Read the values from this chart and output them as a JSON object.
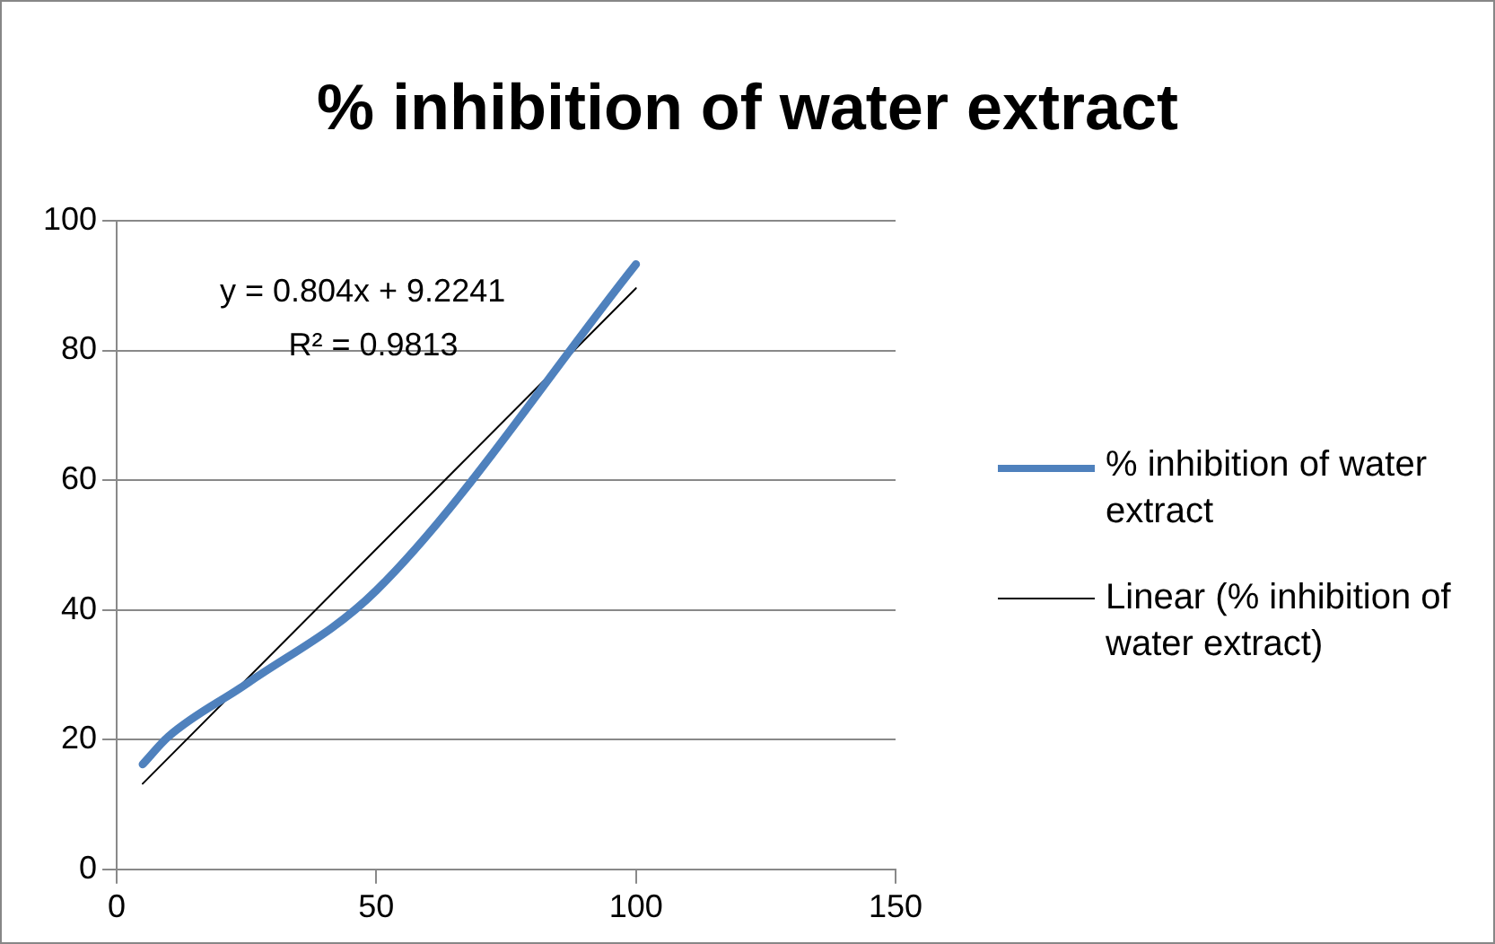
{
  "chart_data": {
    "type": "line",
    "title": "% inhibition of water extract",
    "series": [
      {
        "name": "% inhibition of water extract",
        "color": "#4f81bd",
        "x": [
          5,
          10,
          25,
          50,
          100
        ],
        "values": [
          16.2,
          20.5,
          28.6,
          43,
          93.3
        ]
      },
      {
        "type": "line",
        "name": "Linear (% inhibition of water extract)",
        "color": "#000000",
        "x": [
          5,
          100
        ],
        "values": [
          13.2,
          89.6
        ]
      }
    ],
    "annotations": [
      "y = 0.804x + 9.2241",
      "R² = 0.9813"
    ],
    "xlim": [
      0,
      150
    ],
    "xticks": [
      0,
      50,
      100,
      150
    ],
    "ylim": [
      0,
      100
    ],
    "yticks": [
      0,
      20,
      40,
      60,
      80,
      100
    ],
    "grid": "y",
    "legend": "right",
    "marker": "none",
    "line_style": "solid"
  }
}
